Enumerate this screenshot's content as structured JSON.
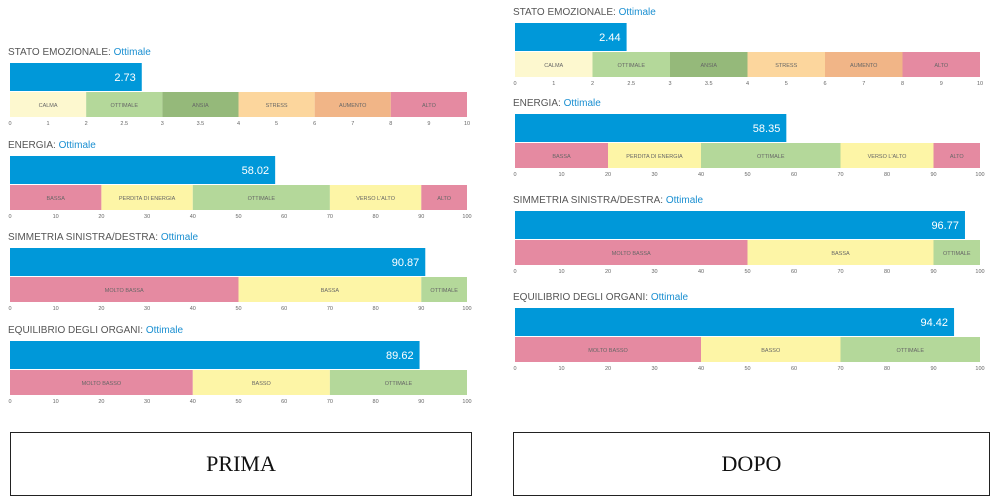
{
  "colors": {
    "bar": "#0098d9",
    "link": "#1a8fd1",
    "title": "#555555",
    "tick": "#666666",
    "calma": "#fdf8cf",
    "ottimale": "#b4d89a",
    "ansia": "#95b97a",
    "stress": "#fcd69d",
    "aumento": "#f1b587",
    "alto": "#e58aa1",
    "bassa": "#e58aa1",
    "perdita": "#fdf5a6",
    "verso": "#fdf5a6",
    "molto": "#e58aa1",
    "bassa_yellow": "#fdf5a6"
  },
  "panels": [
    {
      "id": "prima",
      "caption": "PRIMA",
      "charts": [
        {
          "name": "stato-emozionale",
          "title": "STATO EMOZIONALE:",
          "status": "Ottimale",
          "type": "bar",
          "value": 2.73,
          "value_label": "2.73",
          "ticks": [
            0,
            1,
            2,
            2.5,
            3,
            3.5,
            4,
            5,
            6,
            7,
            8,
            9,
            10
          ],
          "tick_labels": [
            "0",
            "1",
            "2",
            "2.5",
            "3",
            "3.5",
            "4",
            "5",
            "6",
            "7",
            "8",
            "9",
            "10"
          ],
          "segments": [
            {
              "label": "CALMA",
              "from": 0,
              "to": 2,
              "color": "calma"
            },
            {
              "label": "OTTIMALE",
              "from": 2,
              "to": 3,
              "color": "ottimale"
            },
            {
              "label": "ANSIA",
              "from": 3,
              "to": 4,
              "color": "ansia"
            },
            {
              "label": "STRESS",
              "from": 4,
              "to": 6,
              "color": "stress"
            },
            {
              "label": "AUMENTO",
              "from": 6,
              "to": 8,
              "color": "aumento"
            },
            {
              "label": "ALTO",
              "from": 8,
              "to": 10,
              "color": "alto"
            }
          ]
        },
        {
          "name": "energia",
          "title": "ENERGIA:",
          "status": "Ottimale",
          "type": "bar",
          "value": 58.02,
          "value_label": "58.02",
          "ticks": [
            0,
            10,
            20,
            30,
            40,
            50,
            60,
            70,
            80,
            90,
            100
          ],
          "tick_labels": [
            "0",
            "10",
            "20",
            "30",
            "40",
            "50",
            "60",
            "70",
            "80",
            "90",
            "100"
          ],
          "segments": [
            {
              "label": "BASSA",
              "from": 0,
              "to": 20,
              "color": "bassa"
            },
            {
              "label": "PERDITA DI ENERGIA",
              "from": 20,
              "to": 40,
              "color": "perdita"
            },
            {
              "label": "OTTIMALE",
              "from": 40,
              "to": 70,
              "color": "ottimale"
            },
            {
              "label": "VERSO L'ALTO",
              "from": 70,
              "to": 90,
              "color": "verso"
            },
            {
              "label": "ALTO",
              "from": 90,
              "to": 100,
              "color": "alto"
            }
          ]
        },
        {
          "name": "simmetria",
          "title": "SIMMETRIA SINISTRA/DESTRA:",
          "status": "Ottimale",
          "type": "bar",
          "value": 90.87,
          "value_label": "90.87",
          "ticks": [
            0,
            10,
            20,
            30,
            40,
            50,
            60,
            70,
            80,
            90,
            100
          ],
          "tick_labels": [
            "0",
            "10",
            "20",
            "30",
            "40",
            "50",
            "60",
            "70",
            "80",
            "90",
            "100"
          ],
          "segments": [
            {
              "label": "MOLTO BASSA",
              "from": 0,
              "to": 50,
              "color": "molto"
            },
            {
              "label": "BASSA",
              "from": 50,
              "to": 90,
              "color": "bassa_yellow"
            },
            {
              "label": "OTTIMALE",
              "from": 90,
              "to": 100,
              "color": "ottimale"
            }
          ]
        },
        {
          "name": "equilibrio",
          "title": "EQUILIBRIO DEGLI ORGANI:",
          "status": "Ottimale",
          "type": "bar",
          "value": 89.62,
          "value_label": "89.62",
          "ticks": [
            0,
            10,
            20,
            30,
            40,
            50,
            60,
            70,
            80,
            90,
            100
          ],
          "tick_labels": [
            "0",
            "10",
            "20",
            "30",
            "40",
            "50",
            "60",
            "70",
            "80",
            "90",
            "100"
          ],
          "segments": [
            {
              "label": "MOLTO BASSO",
              "from": 0,
              "to": 40,
              "color": "molto"
            },
            {
              "label": "BASSO",
              "from": 40,
              "to": 70,
              "color": "bassa_yellow"
            },
            {
              "label": "OTTIMALE",
              "from": 70,
              "to": 100,
              "color": "ottimale"
            }
          ]
        }
      ]
    },
    {
      "id": "dopo",
      "caption": "DOPO",
      "charts": [
        {
          "name": "stato-emozionale",
          "title": "STATO EMOZIONALE:",
          "status": "Ottimale",
          "type": "bar",
          "value": 2.44,
          "value_label": "2.44",
          "ticks": [
            0,
            1,
            2,
            2.5,
            3,
            3.5,
            4,
            5,
            6,
            7,
            8,
            9,
            10
          ],
          "tick_labels": [
            "0",
            "1",
            "2",
            "2.5",
            "3",
            "3.5",
            "4",
            "5",
            "6",
            "7",
            "8",
            "9",
            "10"
          ],
          "segments": [
            {
              "label": "CALMA",
              "from": 0,
              "to": 2,
              "color": "calma"
            },
            {
              "label": "OTTIMALE",
              "from": 2,
              "to": 3,
              "color": "ottimale"
            },
            {
              "label": "ANSIA",
              "from": 3,
              "to": 4,
              "color": "ansia"
            },
            {
              "label": "STRESS",
              "from": 4,
              "to": 6,
              "color": "stress"
            },
            {
              "label": "AUMENTO",
              "from": 6,
              "to": 8,
              "color": "aumento"
            },
            {
              "label": "ALTO",
              "from": 8,
              "to": 10,
              "color": "alto"
            }
          ]
        },
        {
          "name": "energia",
          "title": "ENERGIA:",
          "status": "Ottimale",
          "type": "bar",
          "value": 58.35,
          "value_label": "58.35",
          "ticks": [
            0,
            10,
            20,
            30,
            40,
            50,
            60,
            70,
            80,
            90,
            100
          ],
          "tick_labels": [
            "0",
            "10",
            "20",
            "30",
            "40",
            "50",
            "60",
            "70",
            "80",
            "90",
            "100"
          ],
          "segments": [
            {
              "label": "BASSA",
              "from": 0,
              "to": 20,
              "color": "bassa"
            },
            {
              "label": "PERDITA DI ENERGIA",
              "from": 20,
              "to": 40,
              "color": "perdita"
            },
            {
              "label": "OTTIMALE",
              "from": 40,
              "to": 70,
              "color": "ottimale"
            },
            {
              "label": "VERSO L'ALTO",
              "from": 70,
              "to": 90,
              "color": "verso"
            },
            {
              "label": "ALTO",
              "from": 90,
              "to": 100,
              "color": "alto"
            }
          ]
        },
        {
          "name": "simmetria",
          "title": "SIMMETRIA SINISTRA/DESTRA:",
          "status": "Ottimale",
          "type": "bar",
          "value": 96.77,
          "value_label": "96.77",
          "ticks": [
            0,
            10,
            20,
            30,
            40,
            50,
            60,
            70,
            80,
            90,
            100
          ],
          "tick_labels": [
            "0",
            "10",
            "20",
            "30",
            "40",
            "50",
            "60",
            "70",
            "80",
            "90",
            "100"
          ],
          "segments": [
            {
              "label": "MOLTO BASSA",
              "from": 0,
              "to": 50,
              "color": "molto"
            },
            {
              "label": "BASSA",
              "from": 50,
              "to": 90,
              "color": "bassa_yellow"
            },
            {
              "label": "OTTIMALE",
              "from": 90,
              "to": 100,
              "color": "ottimale"
            }
          ]
        },
        {
          "name": "equilibrio",
          "title": "EQUILIBRIO DEGLI ORGANI:",
          "status": "Ottimale",
          "type": "bar",
          "value": 94.42,
          "value_label": "94.42",
          "ticks": [
            0,
            10,
            20,
            30,
            40,
            50,
            60,
            70,
            80,
            90,
            100
          ],
          "tick_labels": [
            "0",
            "10",
            "20",
            "30",
            "40",
            "50",
            "60",
            "70",
            "80",
            "90",
            "100"
          ],
          "segments": [
            {
              "label": "MOLTO BASSO",
              "from": 0,
              "to": 40,
              "color": "molto"
            },
            {
              "label": "BASSO",
              "from": 40,
              "to": 70,
              "color": "bassa_yellow"
            },
            {
              "label": "OTTIMALE",
              "from": 70,
              "to": 100,
              "color": "ottimale"
            }
          ]
        }
      ]
    }
  ],
  "chart_data": [
    {
      "type": "bar",
      "panel": "PRIMA",
      "title": "STATO EMOZIONALE: Ottimale",
      "value": 2.73,
      "xlim": [
        0,
        10
      ],
      "ranges": [
        {
          "label": "CALMA",
          "from": 0,
          "to": 2
        },
        {
          "label": "OTTIMALE",
          "from": 2,
          "to": 3
        },
        {
          "label": "ANSIA",
          "from": 3,
          "to": 4
        },
        {
          "label": "STRESS",
          "from": 4,
          "to": 6
        },
        {
          "label": "AUMENTO",
          "from": 6,
          "to": 8
        },
        {
          "label": "ALTO",
          "from": 8,
          "to": 10
        }
      ]
    },
    {
      "type": "bar",
      "panel": "PRIMA",
      "title": "ENERGIA: Ottimale",
      "value": 58.02,
      "xlim": [
        0,
        100
      ],
      "ranges": [
        {
          "label": "BASSA",
          "from": 0,
          "to": 20
        },
        {
          "label": "PERDITA DI ENERGIA",
          "from": 20,
          "to": 40
        },
        {
          "label": "OTTIMALE",
          "from": 40,
          "to": 70
        },
        {
          "label": "VERSO L'ALTO",
          "from": 70,
          "to": 90
        },
        {
          "label": "ALTO",
          "from": 90,
          "to": 100
        }
      ]
    },
    {
      "type": "bar",
      "panel": "PRIMA",
      "title": "SIMMETRIA SINISTRA/DESTRA: Ottimale",
      "value": 90.87,
      "xlim": [
        0,
        100
      ],
      "ranges": [
        {
          "label": "MOLTO BASSA",
          "from": 0,
          "to": 50
        },
        {
          "label": "BASSA",
          "from": 50,
          "to": 90
        },
        {
          "label": "OTTIMALE",
          "from": 90,
          "to": 100
        }
      ]
    },
    {
      "type": "bar",
      "panel": "PRIMA",
      "title": "EQUILIBRIO DEGLI ORGANI: Ottimale",
      "value": 89.62,
      "xlim": [
        0,
        100
      ],
      "ranges": [
        {
          "label": "MOLTO BASSO",
          "from": 0,
          "to": 40
        },
        {
          "label": "BASSO",
          "from": 40,
          "to": 70
        },
        {
          "label": "OTTIMALE",
          "from": 70,
          "to": 100
        }
      ]
    },
    {
      "type": "bar",
      "panel": "DOPO",
      "title": "STATO EMOZIONALE: Ottimale",
      "value": 2.44,
      "xlim": [
        0,
        10
      ],
      "ranges": [
        {
          "label": "CALMA",
          "from": 0,
          "to": 2
        },
        {
          "label": "OTTIMALE",
          "from": 2,
          "to": 3
        },
        {
          "label": "ANSIA",
          "from": 3,
          "to": 4
        },
        {
          "label": "STRESS",
          "from": 4,
          "to": 6
        },
        {
          "label": "AUMENTO",
          "from": 6,
          "to": 8
        },
        {
          "label": "ALTO",
          "from": 8,
          "to": 10
        }
      ]
    },
    {
      "type": "bar",
      "panel": "DOPO",
      "title": "ENERGIA: Ottimale",
      "value": 58.35,
      "xlim": [
        0,
        100
      ],
      "ranges": [
        {
          "label": "BASSA",
          "from": 0,
          "to": 20
        },
        {
          "label": "PERDITA DI ENERGIA",
          "from": 20,
          "to": 40
        },
        {
          "label": "OTTIMALE",
          "from": 40,
          "to": 70
        },
        {
          "label": "VERSO L'ALTO",
          "from": 70,
          "to": 90
        },
        {
          "label": "ALTO",
          "from": 90,
          "to": 100
        }
      ]
    },
    {
      "type": "bar",
      "panel": "DOPO",
      "title": "SIMMETRIA SINISTRA/DESTRA: Ottimale",
      "value": 96.77,
      "xlim": [
        0,
        100
      ],
      "ranges": [
        {
          "label": "MOLTO BASSA",
          "from": 0,
          "to": 50
        },
        {
          "label": "BASSA",
          "from": 50,
          "to": 90
        },
        {
          "label": "OTTIMALE",
          "from": 90,
          "to": 100
        }
      ]
    },
    {
      "type": "bar",
      "panel": "DOPO",
      "title": "EQUILIBRIO DEGLI ORGANI: Ottimale",
      "value": 94.42,
      "xlim": [
        0,
        100
      ],
      "ranges": [
        {
          "label": "MOLTO BASSO",
          "from": 0,
          "to": 40
        },
        {
          "label": "BASSO",
          "from": 40,
          "to": 70
        },
        {
          "label": "OTTIMALE",
          "from": 70,
          "to": 100
        }
      ]
    }
  ]
}
